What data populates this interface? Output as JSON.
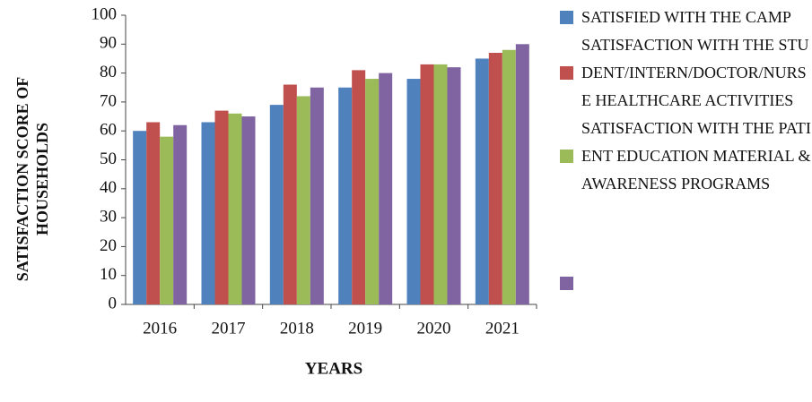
{
  "chart_data": {
    "type": "bar",
    "y_label": "SATISFACTION SCORE OF HOUSEHOLDS",
    "x_label": "YEARS",
    "categories": [
      "2016",
      "2017",
      "2018",
      "2019",
      "2020",
      "2021"
    ],
    "series": [
      {
        "name": "SATISFIED WITH THE CAMP",
        "color": "#4f81bd",
        "values": [
          60,
          63,
          69,
          75,
          78,
          85
        ]
      },
      {
        "name": "SATISFACTION WITH THE STUDENT/INTERN/DOCTOR/NURSE HEALTHCARE ACTIVITIES",
        "color": "#c0504d",
        "values": [
          63,
          67,
          76,
          81,
          83,
          87
        ]
      },
      {
        "name": "SATISFACTION WITH THE PATIENT EDUCATION MATERIAL & AWARENESS PROGRAMS",
        "color": "#9bbb59",
        "values": [
          58,
          66,
          72,
          78,
          83,
          88
        ]
      },
      {
        "color": "#8064a2",
        "values": [
          62,
          65,
          75,
          80,
          82,
          90
        ]
      }
    ],
    "ylim": [
      0,
      100
    ],
    "yticks": [
      0,
      10,
      20,
      30,
      40,
      50,
      60,
      70,
      80,
      90,
      100
    ]
  }
}
